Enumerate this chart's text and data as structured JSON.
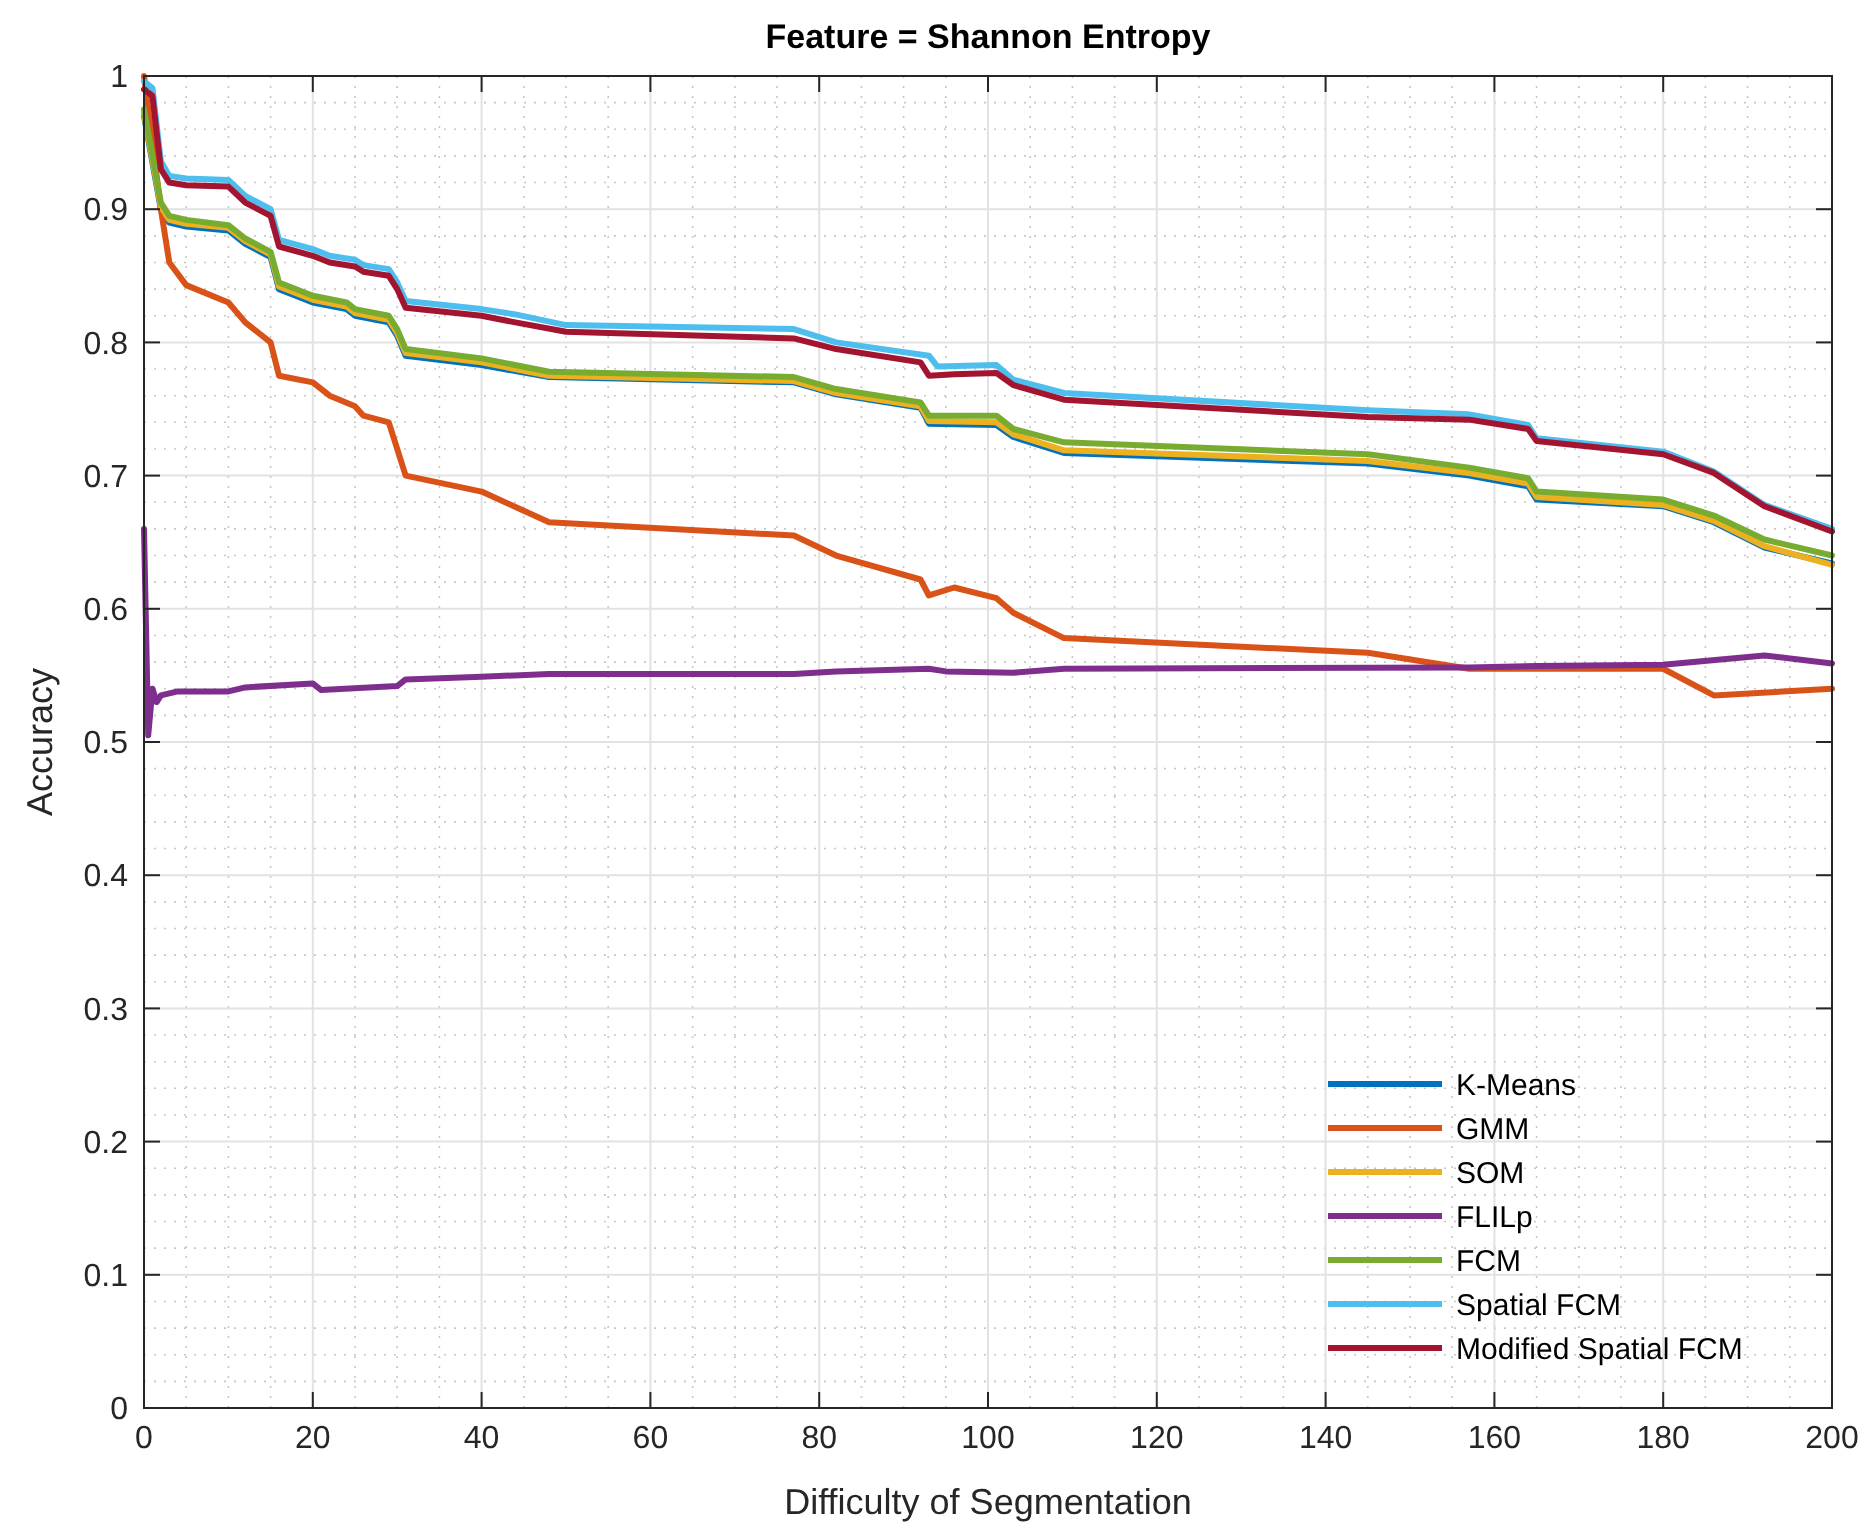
{
  "chart_data": {
    "type": "line",
    "title": "Feature = Shannon Entropy",
    "xlabel": "Difficulty of Segmentation",
    "ylabel": "Accuracy",
    "xlim": [
      0,
      200
    ],
    "xticks": [
      0,
      20,
      40,
      60,
      80,
      100,
      120,
      140,
      160,
      180,
      200
    ],
    "ylim": [
      0,
      1
    ],
    "yticks": [
      0,
      0.1,
      0.2,
      0.3,
      0.4,
      0.5,
      0.6,
      0.7,
      0.8,
      0.9,
      1
    ],
    "grid": true,
    "legend": "bottom right",
    "line_style": "solid",
    "marker": "none",
    "series": [
      {
        "name": "K-Means",
        "color": "#0072bd",
        "x": [
          0,
          2,
          3,
          5,
          10,
          12,
          15,
          16,
          20,
          24,
          25,
          29,
          30,
          31,
          40,
          48,
          77,
          82,
          92,
          93,
          101,
          103,
          109,
          145,
          157,
          164,
          165,
          180,
          186,
          192,
          200
        ],
        "values": [
          0.97,
          0.9,
          0.89,
          0.887,
          0.884,
          0.874,
          0.864,
          0.84,
          0.83,
          0.825,
          0.82,
          0.815,
          0.805,
          0.79,
          0.783,
          0.774,
          0.77,
          0.761,
          0.751,
          0.739,
          0.738,
          0.729,
          0.717,
          0.709,
          0.7,
          0.692,
          0.682,
          0.677,
          0.665,
          0.646,
          0.634
        ]
      },
      {
        "name": "GMM",
        "color": "#d95319",
        "x": [
          0,
          1,
          2,
          3,
          5,
          10,
          12,
          15,
          16,
          20,
          22,
          25,
          26,
          29,
          30,
          31,
          40,
          48,
          77,
          82,
          92,
          93,
          96,
          101,
          103,
          109,
          145,
          157,
          180,
          186,
          200
        ],
        "values": [
          1.0,
          0.95,
          0.9,
          0.86,
          0.843,
          0.83,
          0.815,
          0.8,
          0.775,
          0.77,
          0.76,
          0.752,
          0.745,
          0.74,
          0.72,
          0.7,
          0.688,
          0.665,
          0.655,
          0.64,
          0.622,
          0.61,
          0.616,
          0.608,
          0.597,
          0.578,
          0.567,
          0.555,
          0.555,
          0.535,
          0.54
        ]
      },
      {
        "name": "SOM",
        "color": "#edb120",
        "x": [
          0,
          2,
          3,
          5,
          10,
          12,
          15,
          16,
          20,
          24,
          25,
          29,
          30,
          31,
          40,
          48,
          77,
          82,
          92,
          93,
          101,
          103,
          109,
          145,
          157,
          164,
          165,
          180,
          186,
          192,
          200
        ],
        "values": [
          0.972,
          0.902,
          0.892,
          0.889,
          0.886,
          0.876,
          0.866,
          0.842,
          0.832,
          0.827,
          0.822,
          0.817,
          0.807,
          0.792,
          0.785,
          0.775,
          0.771,
          0.762,
          0.752,
          0.741,
          0.74,
          0.731,
          0.719,
          0.711,
          0.702,
          0.694,
          0.684,
          0.678,
          0.666,
          0.647,
          0.633
        ]
      },
      {
        "name": "FLILp",
        "color": "#7e2f8e",
        "x": [
          0,
          0.5,
          1,
          1.5,
          2,
          4,
          10,
          12,
          20,
          21,
          30,
          31,
          40,
          48,
          77,
          82,
          93,
          95,
          103,
          109,
          157,
          165,
          180,
          192,
          200
        ],
        "values": [
          0.66,
          0.505,
          0.54,
          0.53,
          0.535,
          0.538,
          0.538,
          0.541,
          0.544,
          0.539,
          0.542,
          0.547,
          0.549,
          0.551,
          0.551,
          0.553,
          0.555,
          0.553,
          0.552,
          0.555,
          0.556,
          0.557,
          0.558,
          0.565,
          0.559
        ]
      },
      {
        "name": "FCM",
        "color": "#77ac30",
        "x": [
          0,
          2,
          3,
          5,
          10,
          12,
          15,
          16,
          20,
          24,
          25,
          29,
          30,
          31,
          40,
          48,
          77,
          82,
          92,
          93,
          101,
          103,
          109,
          145,
          157,
          164,
          165,
          180,
          186,
          192,
          200
        ],
        "values": [
          0.975,
          0.905,
          0.895,
          0.892,
          0.888,
          0.878,
          0.868,
          0.845,
          0.835,
          0.83,
          0.825,
          0.82,
          0.81,
          0.795,
          0.788,
          0.778,
          0.774,
          0.765,
          0.755,
          0.745,
          0.745,
          0.735,
          0.725,
          0.716,
          0.706,
          0.698,
          0.688,
          0.682,
          0.67,
          0.652,
          0.64
        ]
      },
      {
        "name": "Spatial FCM",
        "color": "#4dbeee",
        "x": [
          0,
          1,
          2,
          3,
          5,
          10,
          12,
          15,
          16,
          20,
          22,
          25,
          26,
          29,
          30,
          31,
          40,
          44,
          50,
          77,
          82,
          93,
          94,
          101,
          103,
          109,
          145,
          157,
          164,
          165,
          180,
          186,
          192,
          200
        ],
        "values": [
          0.996,
          0.991,
          0.936,
          0.925,
          0.923,
          0.922,
          0.91,
          0.9,
          0.877,
          0.87,
          0.865,
          0.862,
          0.858,
          0.855,
          0.845,
          0.831,
          0.825,
          0.821,
          0.813,
          0.81,
          0.8,
          0.79,
          0.782,
          0.783,
          0.772,
          0.762,
          0.749,
          0.746,
          0.738,
          0.728,
          0.718,
          0.703,
          0.678,
          0.66
        ]
      },
      {
        "name": "Modified Spatial FCM",
        "color": "#a2142f",
        "x": [
          0,
          1,
          2,
          3,
          5,
          10,
          12,
          15,
          16,
          20,
          22,
          25,
          26,
          29,
          30,
          31,
          40,
          44,
          50,
          77,
          82,
          92,
          93,
          96,
          101,
          103,
          109,
          145,
          157,
          164,
          165,
          180,
          186,
          192,
          200
        ],
        "values": [
          0.99,
          0.985,
          0.93,
          0.92,
          0.918,
          0.917,
          0.905,
          0.895,
          0.872,
          0.865,
          0.86,
          0.857,
          0.853,
          0.85,
          0.84,
          0.826,
          0.82,
          0.815,
          0.808,
          0.803,
          0.795,
          0.785,
          0.775,
          0.776,
          0.777,
          0.768,
          0.757,
          0.744,
          0.742,
          0.735,
          0.726,
          0.716,
          0.702,
          0.677,
          0.658
        ]
      }
    ]
  }
}
